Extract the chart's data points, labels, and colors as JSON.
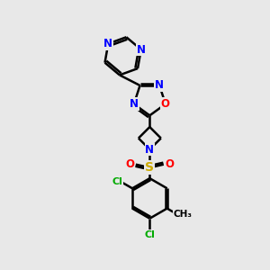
{
  "bg_color": "#e8e8e8",
  "bond_color": "#000000",
  "bond_width": 1.8,
  "atom_colors": {
    "N": "#0000ff",
    "O": "#ff0000",
    "S": "#ccaa00",
    "Cl": "#00aa00",
    "C": "#000000"
  },
  "font_size": 8.5,
  "figsize": [
    3.0,
    3.0
  ],
  "dpi": 100
}
